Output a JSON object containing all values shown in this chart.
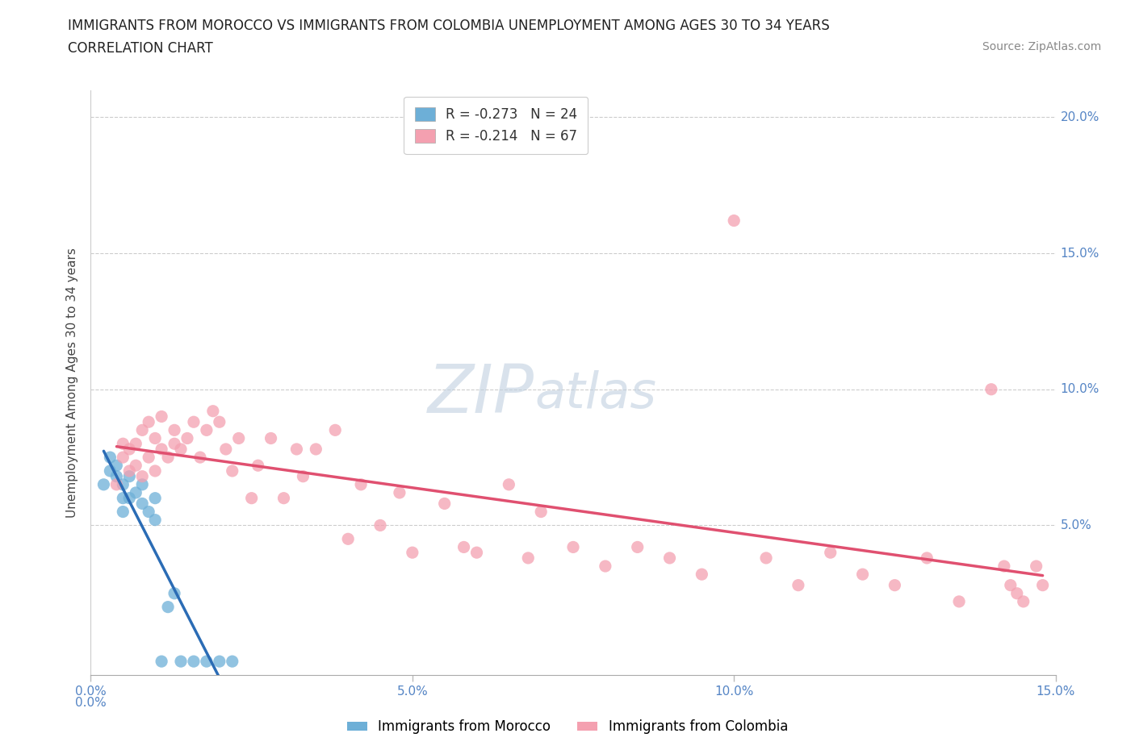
{
  "title_line1": "IMMIGRANTS FROM MOROCCO VS IMMIGRANTS FROM COLOMBIA UNEMPLOYMENT AMONG AGES 30 TO 34 YEARS",
  "title_line2": "CORRELATION CHART",
  "source_text": "Source: ZipAtlas.com",
  "ylabel": "Unemployment Among Ages 30 to 34 years",
  "xlim": [
    0,
    0.15
  ],
  "ylim": [
    -0.005,
    0.21
  ],
  "xticks": [
    0.0,
    0.05,
    0.1,
    0.15
  ],
  "xtick_labels": [
    "0.0%",
    "5.0%",
    "10.0%",
    "15.0%"
  ],
  "yticks": [
    0.05,
    0.1,
    0.15,
    0.2
  ],
  "ytick_labels": [
    "5.0%",
    "10.0%",
    "15.0%",
    "20.0%"
  ],
  "morocco_color": "#6dafd7",
  "colombia_color": "#f4a0b0",
  "morocco_line_color": "#2b6cb5",
  "colombia_line_color": "#e05070",
  "morocco_R": -0.273,
  "morocco_N": 24,
  "colombia_R": -0.214,
  "colombia_N": 67,
  "background_color": "#ffffff",
  "watermark_text": "ZIPatlas",
  "watermark_color": "#ccd8e8",
  "morocco_scatter_x": [
    0.002,
    0.003,
    0.003,
    0.004,
    0.004,
    0.005,
    0.005,
    0.005,
    0.006,
    0.006,
    0.007,
    0.008,
    0.008,
    0.009,
    0.01,
    0.01,
    0.011,
    0.012,
    0.013,
    0.014,
    0.016,
    0.018,
    0.02,
    0.022
  ],
  "morocco_scatter_y": [
    0.065,
    0.07,
    0.075,
    0.068,
    0.072,
    0.06,
    0.065,
    0.055,
    0.06,
    0.068,
    0.062,
    0.058,
    0.065,
    0.055,
    0.06,
    0.052,
    0.0,
    0.02,
    0.025,
    0.0,
    0.0,
    0.0,
    0.0,
    0.0
  ],
  "colombia_scatter_x": [
    0.004,
    0.005,
    0.005,
    0.006,
    0.006,
    0.007,
    0.007,
    0.008,
    0.008,
    0.009,
    0.009,
    0.01,
    0.01,
    0.011,
    0.011,
    0.012,
    0.013,
    0.013,
    0.014,
    0.015,
    0.016,
    0.017,
    0.018,
    0.019,
    0.02,
    0.021,
    0.022,
    0.023,
    0.025,
    0.026,
    0.028,
    0.03,
    0.032,
    0.033,
    0.035,
    0.038,
    0.04,
    0.042,
    0.045,
    0.048,
    0.05,
    0.055,
    0.058,
    0.06,
    0.065,
    0.068,
    0.07,
    0.075,
    0.08,
    0.085,
    0.09,
    0.095,
    0.1,
    0.105,
    0.11,
    0.115,
    0.12,
    0.125,
    0.13,
    0.135,
    0.14,
    0.142,
    0.143,
    0.144,
    0.145,
    0.147,
    0.148
  ],
  "colombia_scatter_y": [
    0.065,
    0.075,
    0.08,
    0.07,
    0.078,
    0.072,
    0.08,
    0.068,
    0.085,
    0.075,
    0.088,
    0.07,
    0.082,
    0.078,
    0.09,
    0.075,
    0.08,
    0.085,
    0.078,
    0.082,
    0.088,
    0.075,
    0.085,
    0.092,
    0.088,
    0.078,
    0.07,
    0.082,
    0.06,
    0.072,
    0.082,
    0.06,
    0.078,
    0.068,
    0.078,
    0.085,
    0.045,
    0.065,
    0.05,
    0.062,
    0.04,
    0.058,
    0.042,
    0.04,
    0.065,
    0.038,
    0.055,
    0.042,
    0.035,
    0.042,
    0.038,
    0.032,
    0.162,
    0.038,
    0.028,
    0.04,
    0.032,
    0.028,
    0.038,
    0.022,
    0.1,
    0.035,
    0.028,
    0.025,
    0.022,
    0.035,
    0.028
  ],
  "title_fontsize": 12,
  "axis_label_fontsize": 11,
  "tick_fontsize": 11,
  "legend_fontsize": 12,
  "source_fontsize": 10,
  "watermark_fontsize": 60,
  "scatter_size": 120
}
